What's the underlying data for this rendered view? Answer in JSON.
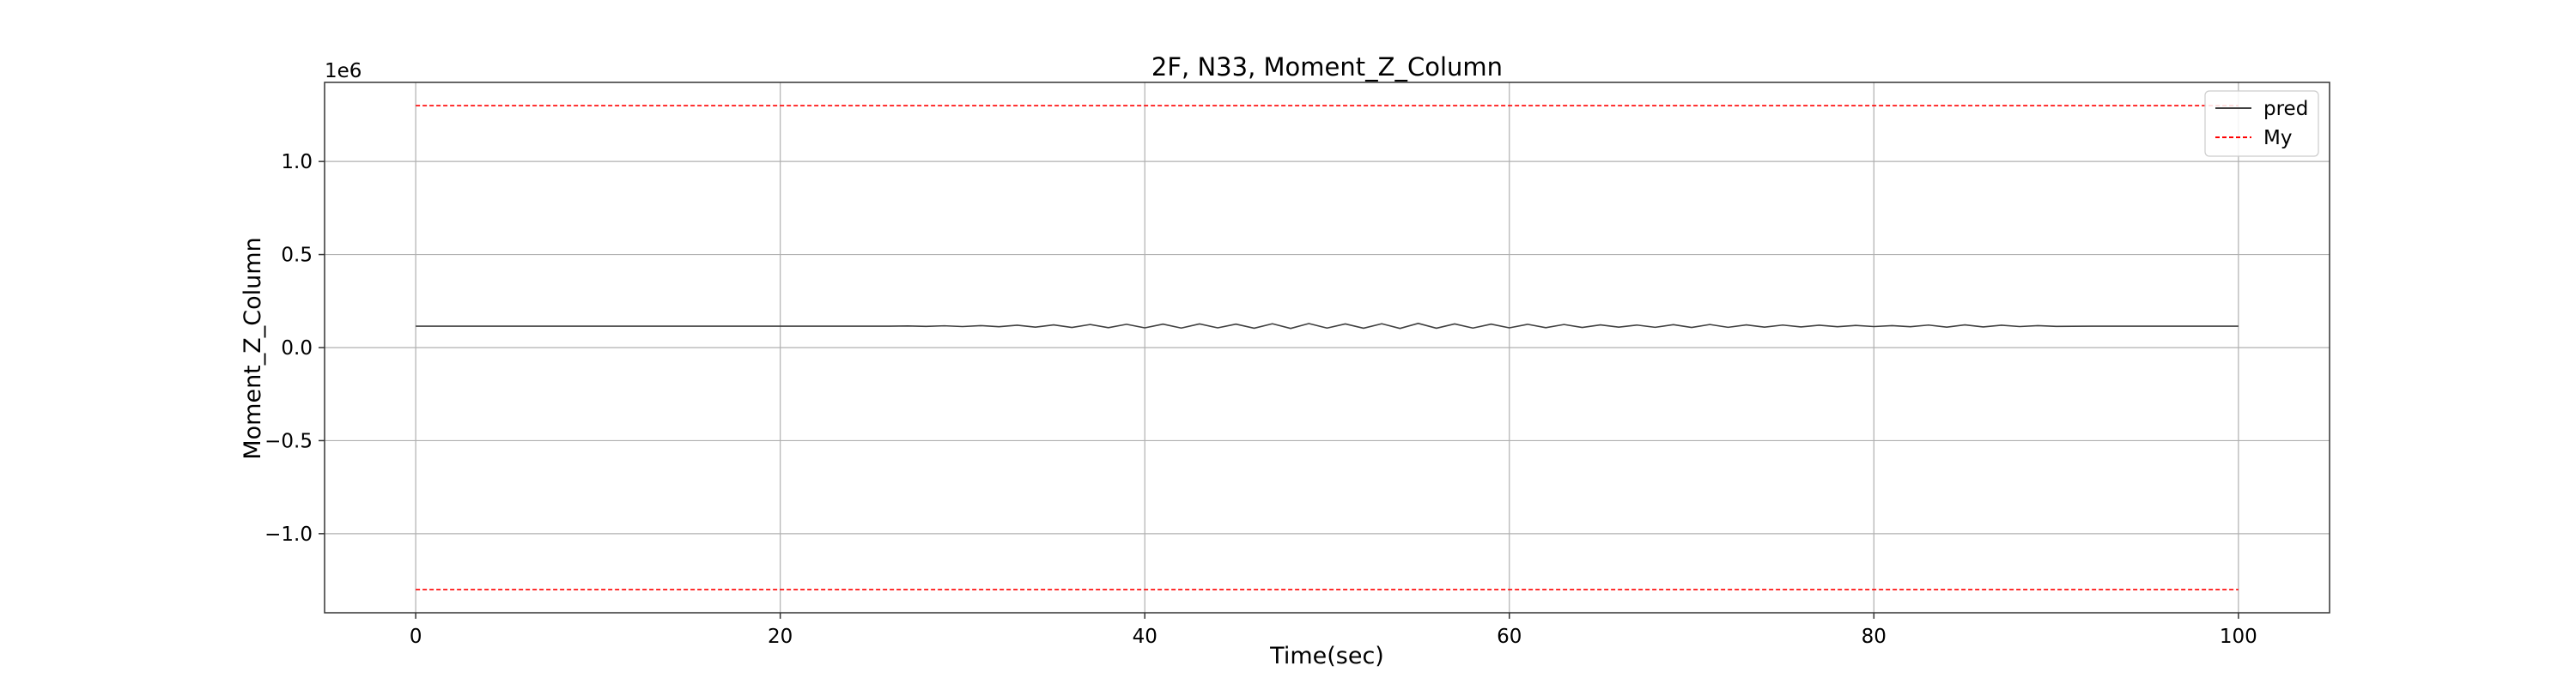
{
  "chart_data": {
    "type": "line",
    "title": "2F, N33, Moment_Z_Column",
    "xlabel": "Time(sec)",
    "ylabel": "Moment_Z_Column",
    "y_offset_label": "1e6",
    "xlim": [
      -5,
      105
    ],
    "ylim": [
      -1425000,
      1425000
    ],
    "x_ticks": [
      0,
      20,
      40,
      60,
      80,
      100
    ],
    "x_tick_labels": [
      "0",
      "20",
      "40",
      "60",
      "80",
      "100"
    ],
    "y_ticks": [
      -1000000,
      -500000,
      0,
      500000,
      1000000
    ],
    "y_tick_labels": [
      "−1.0",
      "−0.5",
      "0.0",
      "0.5",
      "1.0"
    ],
    "grid": true,
    "legend_position": "top-right",
    "series": [
      {
        "name": "pred",
        "color": "#404040",
        "style": "solid",
        "x": [
          0,
          2,
          4,
          6,
          8,
          10,
          12,
          14,
          16,
          18,
          20,
          22,
          24,
          26,
          27,
          28,
          29,
          30,
          31,
          32,
          33,
          34,
          35,
          36,
          37,
          38,
          39,
          40,
          41,
          42,
          43,
          44,
          45,
          46,
          47,
          48,
          49,
          50,
          51,
          52,
          53,
          54,
          55,
          56,
          57,
          58,
          59,
          60,
          61,
          62,
          63,
          64,
          65,
          66,
          67,
          68,
          69,
          70,
          71,
          72,
          73,
          74,
          75,
          76,
          77,
          78,
          79,
          80,
          81,
          82,
          83,
          84,
          85,
          86,
          87,
          88,
          89,
          90,
          92,
          94,
          96,
          98,
          100
        ],
        "y": [
          115000,
          115000,
          115000,
          115000,
          115000,
          115000,
          115000,
          115000,
          115000,
          115000,
          115000,
          115000,
          115000,
          115000,
          116000,
          114000,
          117000,
          113000,
          118000,
          112000,
          120000,
          110000,
          122000,
          108000,
          124000,
          107000,
          125000,
          106000,
          126000,
          105000,
          127000,
          106000,
          126000,
          104000,
          128000,
          103000,
          129000,
          105000,
          127000,
          104000,
          128000,
          103000,
          130000,
          104000,
          127000,
          105000,
          126000,
          106000,
          125000,
          107000,
          124000,
          108000,
          122000,
          110000,
          121000,
          109000,
          123000,
          108000,
          124000,
          109000,
          122000,
          110000,
          121000,
          111000,
          120000,
          112000,
          119000,
          113000,
          118000,
          112000,
          121000,
          110000,
          122000,
          111000,
          120000,
          113000,
          118000,
          114000,
          115000,
          115000,
          115000,
          115000,
          115000
        ]
      },
      {
        "name": "My",
        "color": "#ff0000",
        "style": "dashed",
        "segments": [
          {
            "x": [
              0,
              100
            ],
            "y": [
              1300000,
              1300000
            ]
          },
          {
            "x": [
              0,
              100
            ],
            "y": [
              -1300000,
              -1300000
            ]
          }
        ]
      }
    ]
  }
}
